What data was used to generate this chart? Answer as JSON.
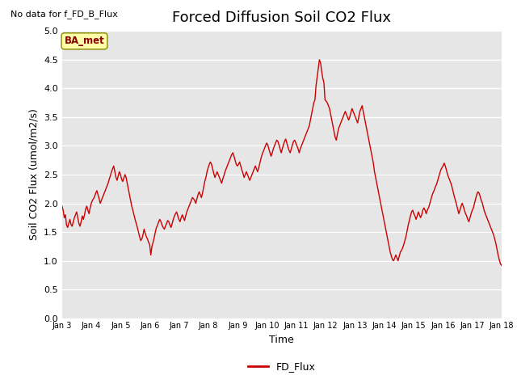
{
  "title": "Forced Diffusion Soil CO2 Flux",
  "no_data_label": "No data for f_FD_B_Flux",
  "xlabel": "Time",
  "ylabel": "Soil CO2 Flux (umol/m2/s)",
  "ylim": [
    0.0,
    5.0
  ],
  "yticks": [
    0.0,
    0.5,
    1.0,
    1.5,
    2.0,
    2.5,
    3.0,
    3.5,
    4.0,
    4.5,
    5.0
  ],
  "xtick_labels": [
    "Jan 3",
    "Jan 4",
    "Jan 5",
    "Jan 6",
    "Jan 7",
    "Jan 8",
    "Jan 9",
    "Jan 10",
    "Jan 11",
    "Jan 12",
    "Jan 13",
    "Jan 14",
    "Jan 15",
    "Jan 16",
    "Jan 17",
    "Jan 18"
  ],
  "line_color": "#cc0000",
  "line_width": 1.0,
  "legend_label": "FD_Flux",
  "bg_color": "#e6e6e6",
  "ba_met_box_color": "#ffffaa",
  "ba_met_text_color": "#8b0000",
  "ba_met_label": "BA_met",
  "title_fontsize": 13,
  "axis_label_fontsize": 9,
  "tick_fontsize": 8,
  "flux_values": [
    1.95,
    1.88,
    1.75,
    1.8,
    1.62,
    1.58,
    1.65,
    1.72,
    1.63,
    1.6,
    1.68,
    1.75,
    1.8,
    1.85,
    1.75,
    1.65,
    1.6,
    1.68,
    1.78,
    1.72,
    1.8,
    1.9,
    1.95,
    1.88,
    1.82,
    1.92,
    2.0,
    2.05,
    2.08,
    2.12,
    2.18,
    2.22,
    2.15,
    2.08,
    2.0,
    2.05,
    2.1,
    2.15,
    2.2,
    2.25,
    2.3,
    2.35,
    2.42,
    2.48,
    2.55,
    2.6,
    2.65,
    2.55,
    2.45,
    2.4,
    2.48,
    2.55,
    2.5,
    2.42,
    2.38,
    2.44,
    2.5,
    2.45,
    2.35,
    2.25,
    2.15,
    2.05,
    1.95,
    1.88,
    1.8,
    1.72,
    1.65,
    1.58,
    1.5,
    1.42,
    1.35,
    1.38,
    1.45,
    1.55,
    1.48,
    1.42,
    1.38,
    1.32,
    1.28,
    1.1,
    1.25,
    1.32,
    1.4,
    1.5,
    1.58,
    1.62,
    1.68,
    1.72,
    1.68,
    1.62,
    1.58,
    1.55,
    1.6,
    1.65,
    1.7,
    1.68,
    1.62,
    1.58,
    1.65,
    1.72,
    1.78,
    1.82,
    1.85,
    1.78,
    1.72,
    1.68,
    1.75,
    1.8,
    1.75,
    1.7,
    1.78,
    1.85,
    1.9,
    1.95,
    2.0,
    2.05,
    2.1,
    2.08,
    2.05,
    2.0,
    2.08,
    2.15,
    2.2,
    2.15,
    2.1,
    2.18,
    2.28,
    2.38,
    2.45,
    2.55,
    2.62,
    2.68,
    2.72,
    2.68,
    2.6,
    2.52,
    2.45,
    2.5,
    2.55,
    2.5,
    2.45,
    2.4,
    2.35,
    2.42,
    2.48,
    2.55,
    2.6,
    2.65,
    2.7,
    2.75,
    2.8,
    2.85,
    2.88,
    2.82,
    2.75,
    2.68,
    2.65,
    2.68,
    2.72,
    2.65,
    2.58,
    2.52,
    2.45,
    2.5,
    2.55,
    2.5,
    2.45,
    2.4,
    2.45,
    2.5,
    2.55,
    2.6,
    2.65,
    2.6,
    2.55,
    2.62,
    2.7,
    2.78,
    2.85,
    2.9,
    2.95,
    3.0,
    3.05,
    3.02,
    2.95,
    2.88,
    2.82,
    2.88,
    2.95,
    3.0,
    3.05,
    3.1,
    3.08,
    3.02,
    2.95,
    2.88,
    2.95,
    3.02,
    3.08,
    3.12,
    3.05,
    2.98,
    2.92,
    2.88,
    2.95,
    3.02,
    3.08,
    3.1,
    3.05,
    3.0,
    2.95,
    2.88,
    2.95,
    3.0,
    3.05,
    3.1,
    3.15,
    3.2,
    3.25,
    3.3,
    3.35,
    3.45,
    3.55,
    3.65,
    3.75,
    3.8,
    4.05,
    4.2,
    4.35,
    4.5,
    4.45,
    4.3,
    4.18,
    4.1,
    3.8,
    3.78,
    3.75,
    3.7,
    3.65,
    3.55,
    3.45,
    3.35,
    3.25,
    3.15,
    3.1,
    3.2,
    3.3,
    3.35,
    3.4,
    3.45,
    3.5,
    3.55,
    3.6,
    3.55,
    3.5,
    3.45,
    3.5,
    3.58,
    3.65,
    3.6,
    3.55,
    3.5,
    3.45,
    3.4,
    3.5,
    3.6,
    3.65,
    3.7,
    3.6,
    3.5,
    3.4,
    3.3,
    3.2,
    3.1,
    3.0,
    2.9,
    2.8,
    2.7,
    2.55,
    2.45,
    2.35,
    2.25,
    2.15,
    2.05,
    1.95,
    1.85,
    1.75,
    1.65,
    1.55,
    1.45,
    1.35,
    1.25,
    1.15,
    1.08,
    1.02,
    1.0,
    1.05,
    1.1,
    1.05,
    1.0,
    1.08,
    1.15,
    1.18,
    1.22,
    1.28,
    1.35,
    1.42,
    1.52,
    1.62,
    1.7,
    1.78,
    1.85,
    1.88,
    1.82,
    1.78,
    1.72,
    1.78,
    1.85,
    1.8,
    1.75,
    1.8,
    1.88,
    1.92,
    1.88,
    1.82,
    1.88,
    1.92,
    1.98,
    2.05,
    2.12,
    2.18,
    2.22,
    2.28,
    2.32,
    2.38,
    2.45,
    2.52,
    2.58,
    2.62,
    2.65,
    2.7,
    2.65,
    2.58,
    2.5,
    2.45,
    2.4,
    2.35,
    2.28,
    2.2,
    2.12,
    2.05,
    1.98,
    1.9,
    1.82,
    1.88,
    1.95,
    2.0,
    1.95,
    1.88,
    1.82,
    1.78,
    1.72,
    1.68,
    1.75,
    1.82,
    1.88,
    1.92,
    2.0,
    2.08,
    2.15,
    2.2,
    2.18,
    2.12,
    2.05,
    2.0,
    1.92,
    1.85,
    1.8,
    1.75,
    1.7,
    1.65,
    1.6,
    1.55,
    1.5,
    1.45,
    1.38,
    1.3,
    1.2,
    1.1,
    1.02,
    0.95,
    0.92
  ]
}
